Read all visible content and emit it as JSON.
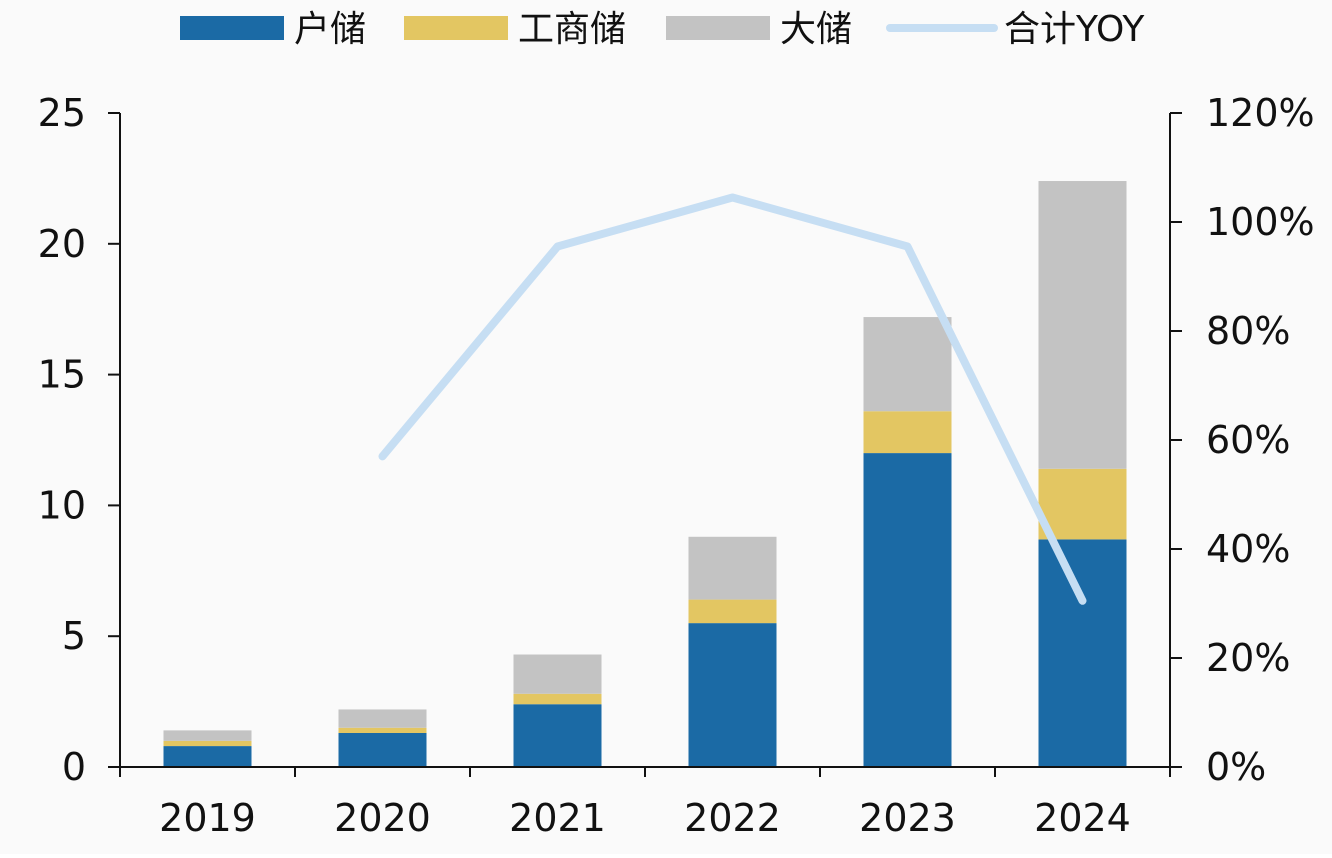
{
  "chart_data": {
    "type": "bar",
    "stacked": true,
    "categories": [
      "2019",
      "2020",
      "2021",
      "2022",
      "2023",
      "2024"
    ],
    "series": [
      {
        "name": "户储",
        "color": "#1b6aa5",
        "values": [
          0.8,
          1.3,
          2.4,
          5.5,
          12.0,
          8.7
        ]
      },
      {
        "name": "工商储",
        "color": "#e3c662",
        "values": [
          0.2,
          0.2,
          0.4,
          0.9,
          1.6,
          2.7
        ]
      },
      {
        "name": "大储",
        "color": "#c3c3c3",
        "values": [
          0.4,
          0.7,
          1.5,
          2.4,
          3.6,
          11.0
        ]
      }
    ],
    "line_series": {
      "name": "合计YOY",
      "color": "#c6def3",
      "axis": "right",
      "values": [
        null,
        0.57,
        0.955,
        1.045,
        0.955,
        0.305
      ]
    },
    "y_left": {
      "min": 0,
      "max": 25,
      "ticks": [
        "0",
        "5",
        "10",
        "15",
        "20",
        "25"
      ]
    },
    "y_right": {
      "min": 0,
      "max": 1.2,
      "ticks": [
        "0%",
        "20%",
        "40%",
        "60%",
        "80%",
        "100%",
        "120%"
      ]
    },
    "legend_position": "top",
    "grid": false
  }
}
